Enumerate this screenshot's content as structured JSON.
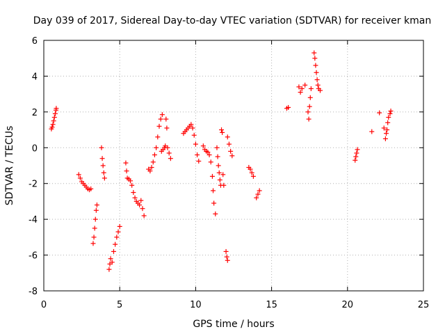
{
  "chart_data": {
    "type": "scatter",
    "title": "Day 039 of 2017, Sidereal Day-to-day VTEC variation (SDTVAR) for receiver kman",
    "xlabel": "GPS time / hours",
    "ylabel": "SDTVAR / TECUs",
    "xlim": [
      0,
      25
    ],
    "ylim": [
      -8,
      6
    ],
    "xticks": [
      0,
      5,
      10,
      15,
      20,
      25
    ],
    "yticks": [
      -8,
      -6,
      -4,
      -2,
      0,
      2,
      4,
      6
    ],
    "grid": true,
    "marker": "+",
    "color": "#ff0000",
    "points": [
      [
        0.5,
        1.05
      ],
      [
        0.55,
        1.15
      ],
      [
        0.6,
        1.3
      ],
      [
        0.65,
        1.5
      ],
      [
        0.7,
        1.7
      ],
      [
        0.75,
        1.9
      ],
      [
        0.8,
        2.1
      ],
      [
        0.82,
        2.2
      ],
      [
        2.3,
        -1.5
      ],
      [
        2.4,
        -1.7
      ],
      [
        2.5,
        -1.9
      ],
      [
        2.6,
        -2.0
      ],
      [
        2.7,
        -2.1
      ],
      [
        2.8,
        -2.2
      ],
      [
        2.9,
        -2.3
      ],
      [
        3.0,
        -2.35
      ],
      [
        3.1,
        -2.3
      ],
      [
        3.25,
        -5.35
      ],
      [
        3.3,
        -5.0
      ],
      [
        3.35,
        -4.5
      ],
      [
        3.4,
        -4.0
      ],
      [
        3.45,
        -3.5
      ],
      [
        3.5,
        -3.2
      ],
      [
        3.8,
        0.0
      ],
      [
        3.85,
        -0.6
      ],
      [
        3.9,
        -1.0
      ],
      [
        3.95,
        -1.4
      ],
      [
        4.0,
        -1.7
      ],
      [
        4.3,
        -6.8
      ],
      [
        4.35,
        -6.5
      ],
      [
        4.4,
        -6.2
      ],
      [
        4.5,
        -6.4
      ],
      [
        4.6,
        -5.8
      ],
      [
        4.7,
        -5.4
      ],
      [
        4.8,
        -5.0
      ],
      [
        4.9,
        -4.7
      ],
      [
        5.0,
        -4.4
      ],
      [
        5.4,
        -0.85
      ],
      [
        5.45,
        -1.3
      ],
      [
        5.5,
        -1.7
      ],
      [
        5.6,
        -1.75
      ],
      [
        5.7,
        -1.85
      ],
      [
        5.8,
        -2.1
      ],
      [
        5.9,
        -2.5
      ],
      [
        6.0,
        -2.8
      ],
      [
        6.1,
        -3.0
      ],
      [
        6.2,
        -3.1
      ],
      [
        6.3,
        -3.2
      ],
      [
        6.4,
        -2.95
      ],
      [
        6.5,
        -3.4
      ],
      [
        6.6,
        -3.8
      ],
      [
        6.9,
        -1.2
      ],
      [
        7.0,
        -1.3
      ],
      [
        7.1,
        -1.1
      ],
      [
        7.2,
        -0.8
      ],
      [
        7.3,
        -0.4
      ],
      [
        7.4,
        0.0
      ],
      [
        7.5,
        0.6
      ],
      [
        7.6,
        1.2
      ],
      [
        7.7,
        1.6
      ],
      [
        7.8,
        1.85
      ],
      [
        7.75,
        -0.2
      ],
      [
        7.85,
        -0.1
      ],
      [
        7.95,
        0.0
      ],
      [
        8.0,
        0.1
      ],
      [
        8.05,
        1.6
      ],
      [
        8.1,
        1.1
      ],
      [
        8.15,
        0.0
      ],
      [
        8.25,
        -0.3
      ],
      [
        8.35,
        -0.6
      ],
      [
        9.2,
        0.8
      ],
      [
        9.3,
        0.9
      ],
      [
        9.4,
        1.0
      ],
      [
        9.5,
        1.1
      ],
      [
        9.6,
        1.2
      ],
      [
        9.7,
        1.3
      ],
      [
        9.8,
        1.1
      ],
      [
        9.9,
        0.7
      ],
      [
        10.0,
        0.2
      ],
      [
        10.1,
        -0.4
      ],
      [
        10.2,
        -0.75
      ],
      [
        10.5,
        0.1
      ],
      [
        10.6,
        -0.1
      ],
      [
        10.7,
        -0.2
      ],
      [
        10.8,
        -0.25
      ],
      [
        10.9,
        -0.4
      ],
      [
        11.0,
        -0.8
      ],
      [
        11.1,
        -1.6
      ],
      [
        11.15,
        -2.4
      ],
      [
        11.2,
        -3.1
      ],
      [
        11.3,
        -3.7
      ],
      [
        11.4,
        0.0
      ],
      [
        11.45,
        -0.5
      ],
      [
        11.5,
        -1.0
      ],
      [
        11.55,
        -1.4
      ],
      [
        11.6,
        -1.8
      ],
      [
        11.65,
        -2.1
      ],
      [
        11.7,
        1.0
      ],
      [
        11.75,
        0.85
      ],
      [
        11.8,
        -1.5
      ],
      [
        11.85,
        -2.1
      ],
      [
        12.0,
        -5.8
      ],
      [
        12.05,
        -6.1
      ],
      [
        12.1,
        -6.3
      ],
      [
        12.1,
        0.6
      ],
      [
        12.2,
        0.2
      ],
      [
        12.3,
        -0.2
      ],
      [
        12.4,
        -0.45
      ],
      [
        13.5,
        -1.1
      ],
      [
        13.6,
        -1.2
      ],
      [
        13.7,
        -1.4
      ],
      [
        13.8,
        -1.6
      ],
      [
        14.0,
        -2.8
      ],
      [
        14.1,
        -2.6
      ],
      [
        14.2,
        -2.4
      ],
      [
        16.0,
        2.2
      ],
      [
        16.1,
        2.25
      ],
      [
        16.8,
        3.4
      ],
      [
        16.9,
        3.1
      ],
      [
        17.0,
        3.3
      ],
      [
        17.2,
        3.5
      ],
      [
        17.4,
        2.0
      ],
      [
        17.45,
        1.6
      ],
      [
        17.5,
        2.3
      ],
      [
        17.55,
        2.8
      ],
      [
        17.6,
        3.3
      ],
      [
        17.8,
        5.3
      ],
      [
        17.85,
        5.0
      ],
      [
        17.9,
        4.6
      ],
      [
        17.95,
        4.2
      ],
      [
        18.0,
        3.8
      ],
      [
        18.05,
        3.5
      ],
      [
        18.1,
        3.3
      ],
      [
        18.2,
        3.2
      ],
      [
        20.5,
        -0.7
      ],
      [
        20.55,
        -0.5
      ],
      [
        20.6,
        -0.3
      ],
      [
        20.65,
        -0.1
      ],
      [
        21.6,
        0.9
      ],
      [
        22.1,
        1.95
      ],
      [
        22.4,
        1.1
      ],
      [
        22.5,
        0.5
      ],
      [
        22.55,
        0.8
      ],
      [
        22.6,
        1.0
      ],
      [
        22.65,
        1.4
      ],
      [
        22.7,
        1.7
      ],
      [
        22.8,
        1.9
      ],
      [
        22.85,
        2.05
      ]
    ]
  }
}
